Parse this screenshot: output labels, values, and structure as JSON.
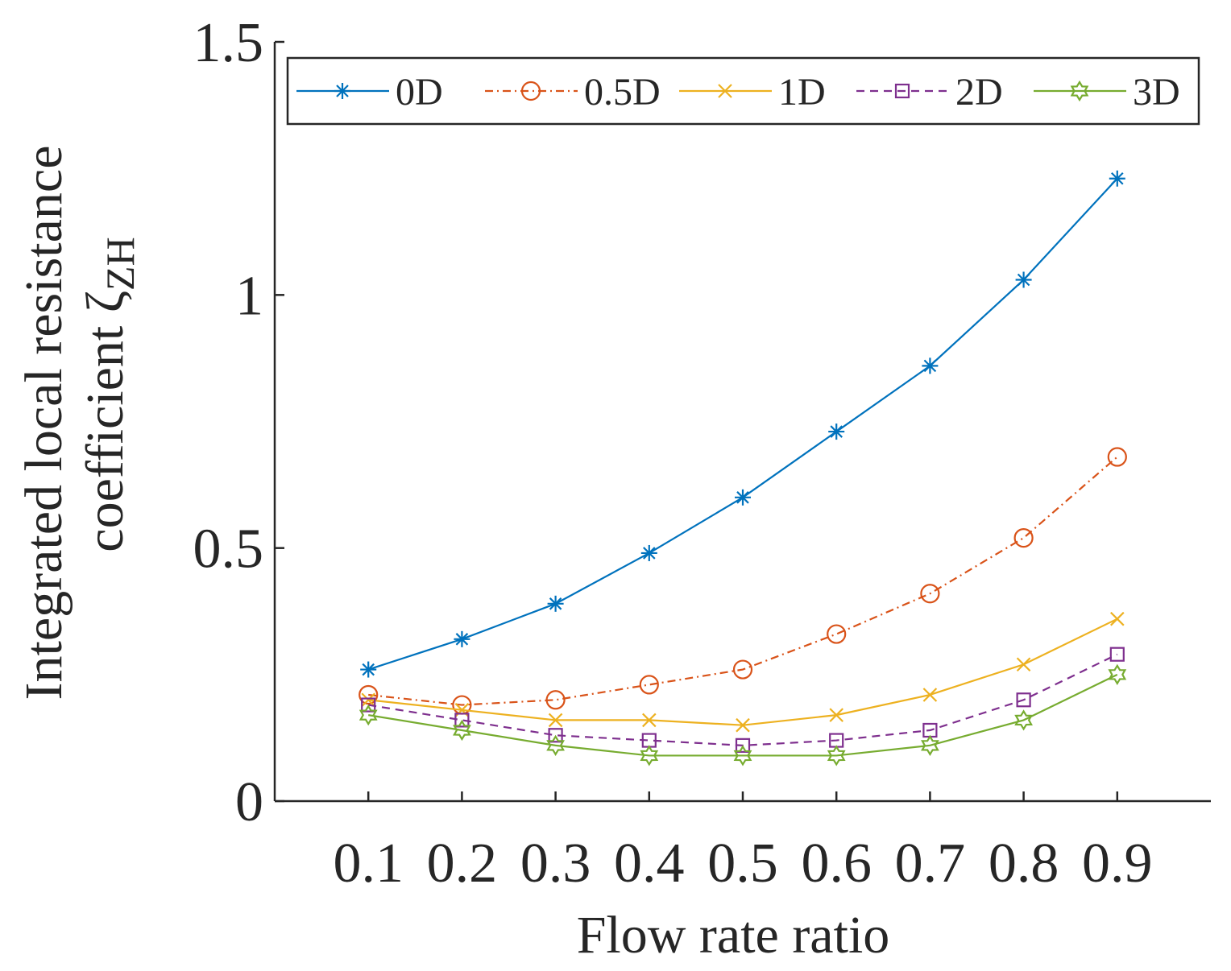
{
  "chart_data": {
    "type": "line",
    "title": "",
    "xlabel": "Flow rate ratio",
    "ylabel_line1": "Integrated local resistance",
    "ylabel_line2_main": "coefficient ζ",
    "ylabel_subscript": "ZH",
    "x": [
      0.1,
      0.2,
      0.3,
      0.4,
      0.5,
      0.6,
      0.7,
      0.8,
      0.9
    ],
    "x_tick_labels": [
      "0.1",
      "0.2",
      "0.3",
      "0.4",
      "0.5",
      "0.6",
      "0.7",
      "0.8",
      "0.9"
    ],
    "xlim": [
      0.0,
      1.0
    ],
    "ylim": [
      0,
      1.5
    ],
    "y_ticks": [
      0,
      0.5,
      1,
      1.5
    ],
    "y_tick_labels": [
      "0",
      "0.5",
      "1",
      "1.5"
    ],
    "grid": false,
    "legend_position": "top",
    "series": [
      {
        "name": "0D",
        "color": "#0072BD",
        "marker": "asterisk",
        "dash": "solid",
        "values": [
          0.26,
          0.32,
          0.39,
          0.49,
          0.6,
          0.73,
          0.86,
          1.03,
          1.23
        ]
      },
      {
        "name": "0.5D",
        "color": "#D95319",
        "marker": "circle",
        "dash": "dashdot",
        "values": [
          0.21,
          0.19,
          0.2,
          0.23,
          0.26,
          0.33,
          0.41,
          0.52,
          0.68
        ]
      },
      {
        "name": "1D",
        "color": "#EDB120",
        "marker": "x",
        "dash": "solid",
        "values": [
          0.2,
          0.18,
          0.16,
          0.16,
          0.15,
          0.17,
          0.21,
          0.27,
          0.36
        ]
      },
      {
        "name": "2D",
        "color": "#7E2F8E",
        "marker": "square",
        "dash": "dashed",
        "values": [
          0.19,
          0.16,
          0.13,
          0.12,
          0.11,
          0.12,
          0.14,
          0.2,
          0.29
        ]
      },
      {
        "name": "3D",
        "color": "#77AC30",
        "marker": "hexagram",
        "dash": "solid",
        "values": [
          0.17,
          0.14,
          0.11,
          0.09,
          0.09,
          0.09,
          0.11,
          0.16,
          0.25
        ]
      }
    ]
  }
}
